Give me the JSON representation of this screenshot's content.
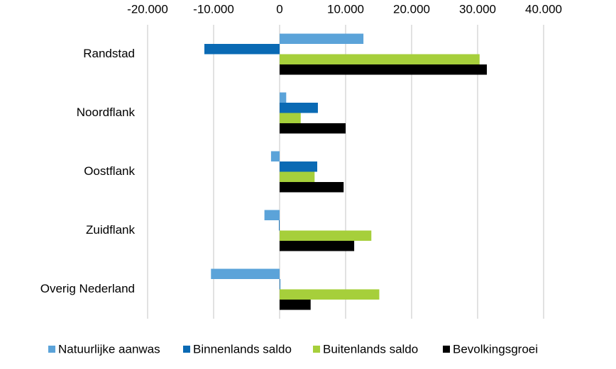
{
  "chart_data": {
    "type": "bar",
    "orientation": "horizontal",
    "categories": [
      "Randstad",
      "Noordflank",
      "Oostflank",
      "Zuidflank",
      "Overig Nederland"
    ],
    "series": [
      {
        "name": "Natuurlijke aanwas",
        "color": "#5ba3d9",
        "values": [
          12700,
          1000,
          -1300,
          -2300,
          -10400
        ]
      },
      {
        "name": "Binnenlands saldo",
        "color": "#0a6ab4",
        "values": [
          -11400,
          5800,
          5700,
          -100,
          100
        ]
      },
      {
        "name": "Buitenlands saldo",
        "color": "#a6cf3b",
        "values": [
          30300,
          3200,
          5300,
          13900,
          15100
        ]
      },
      {
        "name": "Bevolkingsgroei",
        "color": "#000000",
        "values": [
          31400,
          10000,
          9700,
          11300,
          4700
        ]
      }
    ],
    "xlim": [
      -20000,
      40000
    ],
    "xticks": [
      {
        "value": -20000,
        "label": "-20.000"
      },
      {
        "value": -10000,
        "label": "-10.000"
      },
      0,
      {
        "value": 10000,
        "label": "10.000"
      },
      {
        "value": 20000,
        "label": "20.000"
      },
      {
        "value": 30000,
        "label": "30.000"
      },
      {
        "value": 40000,
        "label": "40.000"
      }
    ],
    "grid": true,
    "legend": "bottom"
  }
}
